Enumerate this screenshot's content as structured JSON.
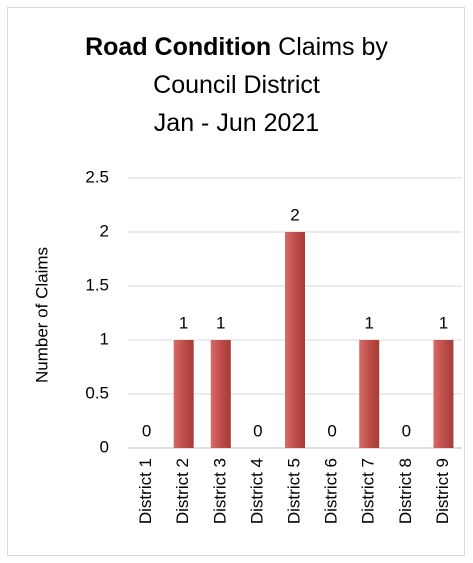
{
  "chart_data": {
    "type": "bar",
    "title_bold": "Road Condition",
    "title_rest": " Claims by",
    "title_line2": "Council District",
    "title_line3": "Jan - Jun 2021",
    "xlabel": "",
    "ylabel": "Number of Claims",
    "categories": [
      "District 1",
      "District 2",
      "District 3",
      "District 4",
      "District 5",
      "District 6",
      "District 7",
      "District 8",
      "District 9"
    ],
    "values": [
      0,
      1,
      1,
      0,
      2,
      0,
      1,
      0,
      1
    ],
    "data_labels": [
      "0",
      "1",
      "1",
      "0",
      "2",
      "0",
      "1",
      "0",
      "1"
    ],
    "ylim": [
      0,
      2.5
    ],
    "yticks": [
      0,
      0.5,
      1,
      1.5,
      2,
      2.5
    ],
    "ytick_labels": [
      "0",
      "0.5",
      "1",
      "1.5",
      "2",
      "2.5"
    ],
    "grid": true,
    "legend": "none",
    "colors": {
      "bar": "#c0504d",
      "bar_light": "#d96a66",
      "bar_dark": "#a83a37",
      "grid": "#d9d9d9",
      "axis": "#bfbfbf",
      "text": "#000000"
    }
  }
}
